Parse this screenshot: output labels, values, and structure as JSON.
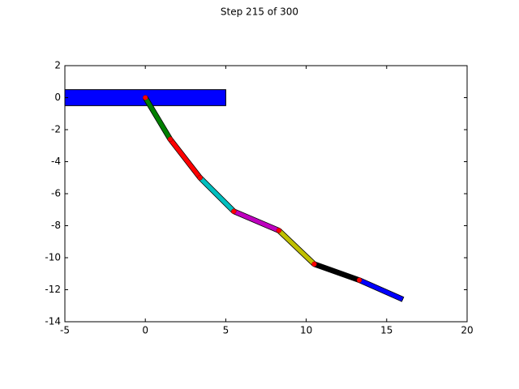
{
  "chart_data": {
    "type": "chain",
    "title": "Step 215 of 300",
    "x": [
      0,
      1.55,
      3.4,
      5.5,
      8.3,
      10.5,
      13.3,
      16.0
    ],
    "y": [
      0,
      -2.6,
      -5.0,
      -7.1,
      -8.3,
      -10.4,
      -11.4,
      -12.6
    ],
    "segment_colors": [
      "#008000",
      "#ff0000",
      "#00bfbf",
      "#bf00bf",
      "#bfbf00",
      "#000000",
      "#0000ff"
    ],
    "joint_color": "#ff0000",
    "block": {
      "x": [
        -5,
        5
      ],
      "y": [
        -0.5,
        0.5
      ],
      "color": "#0000ff"
    },
    "xlim": [
      -5,
      20
    ],
    "ylim": [
      -14,
      2
    ],
    "xticks": [
      -5,
      0,
      5,
      10,
      15,
      20
    ],
    "yticks": [
      -14,
      -12,
      -10,
      -8,
      -6,
      -4,
      -2,
      0,
      2
    ]
  }
}
